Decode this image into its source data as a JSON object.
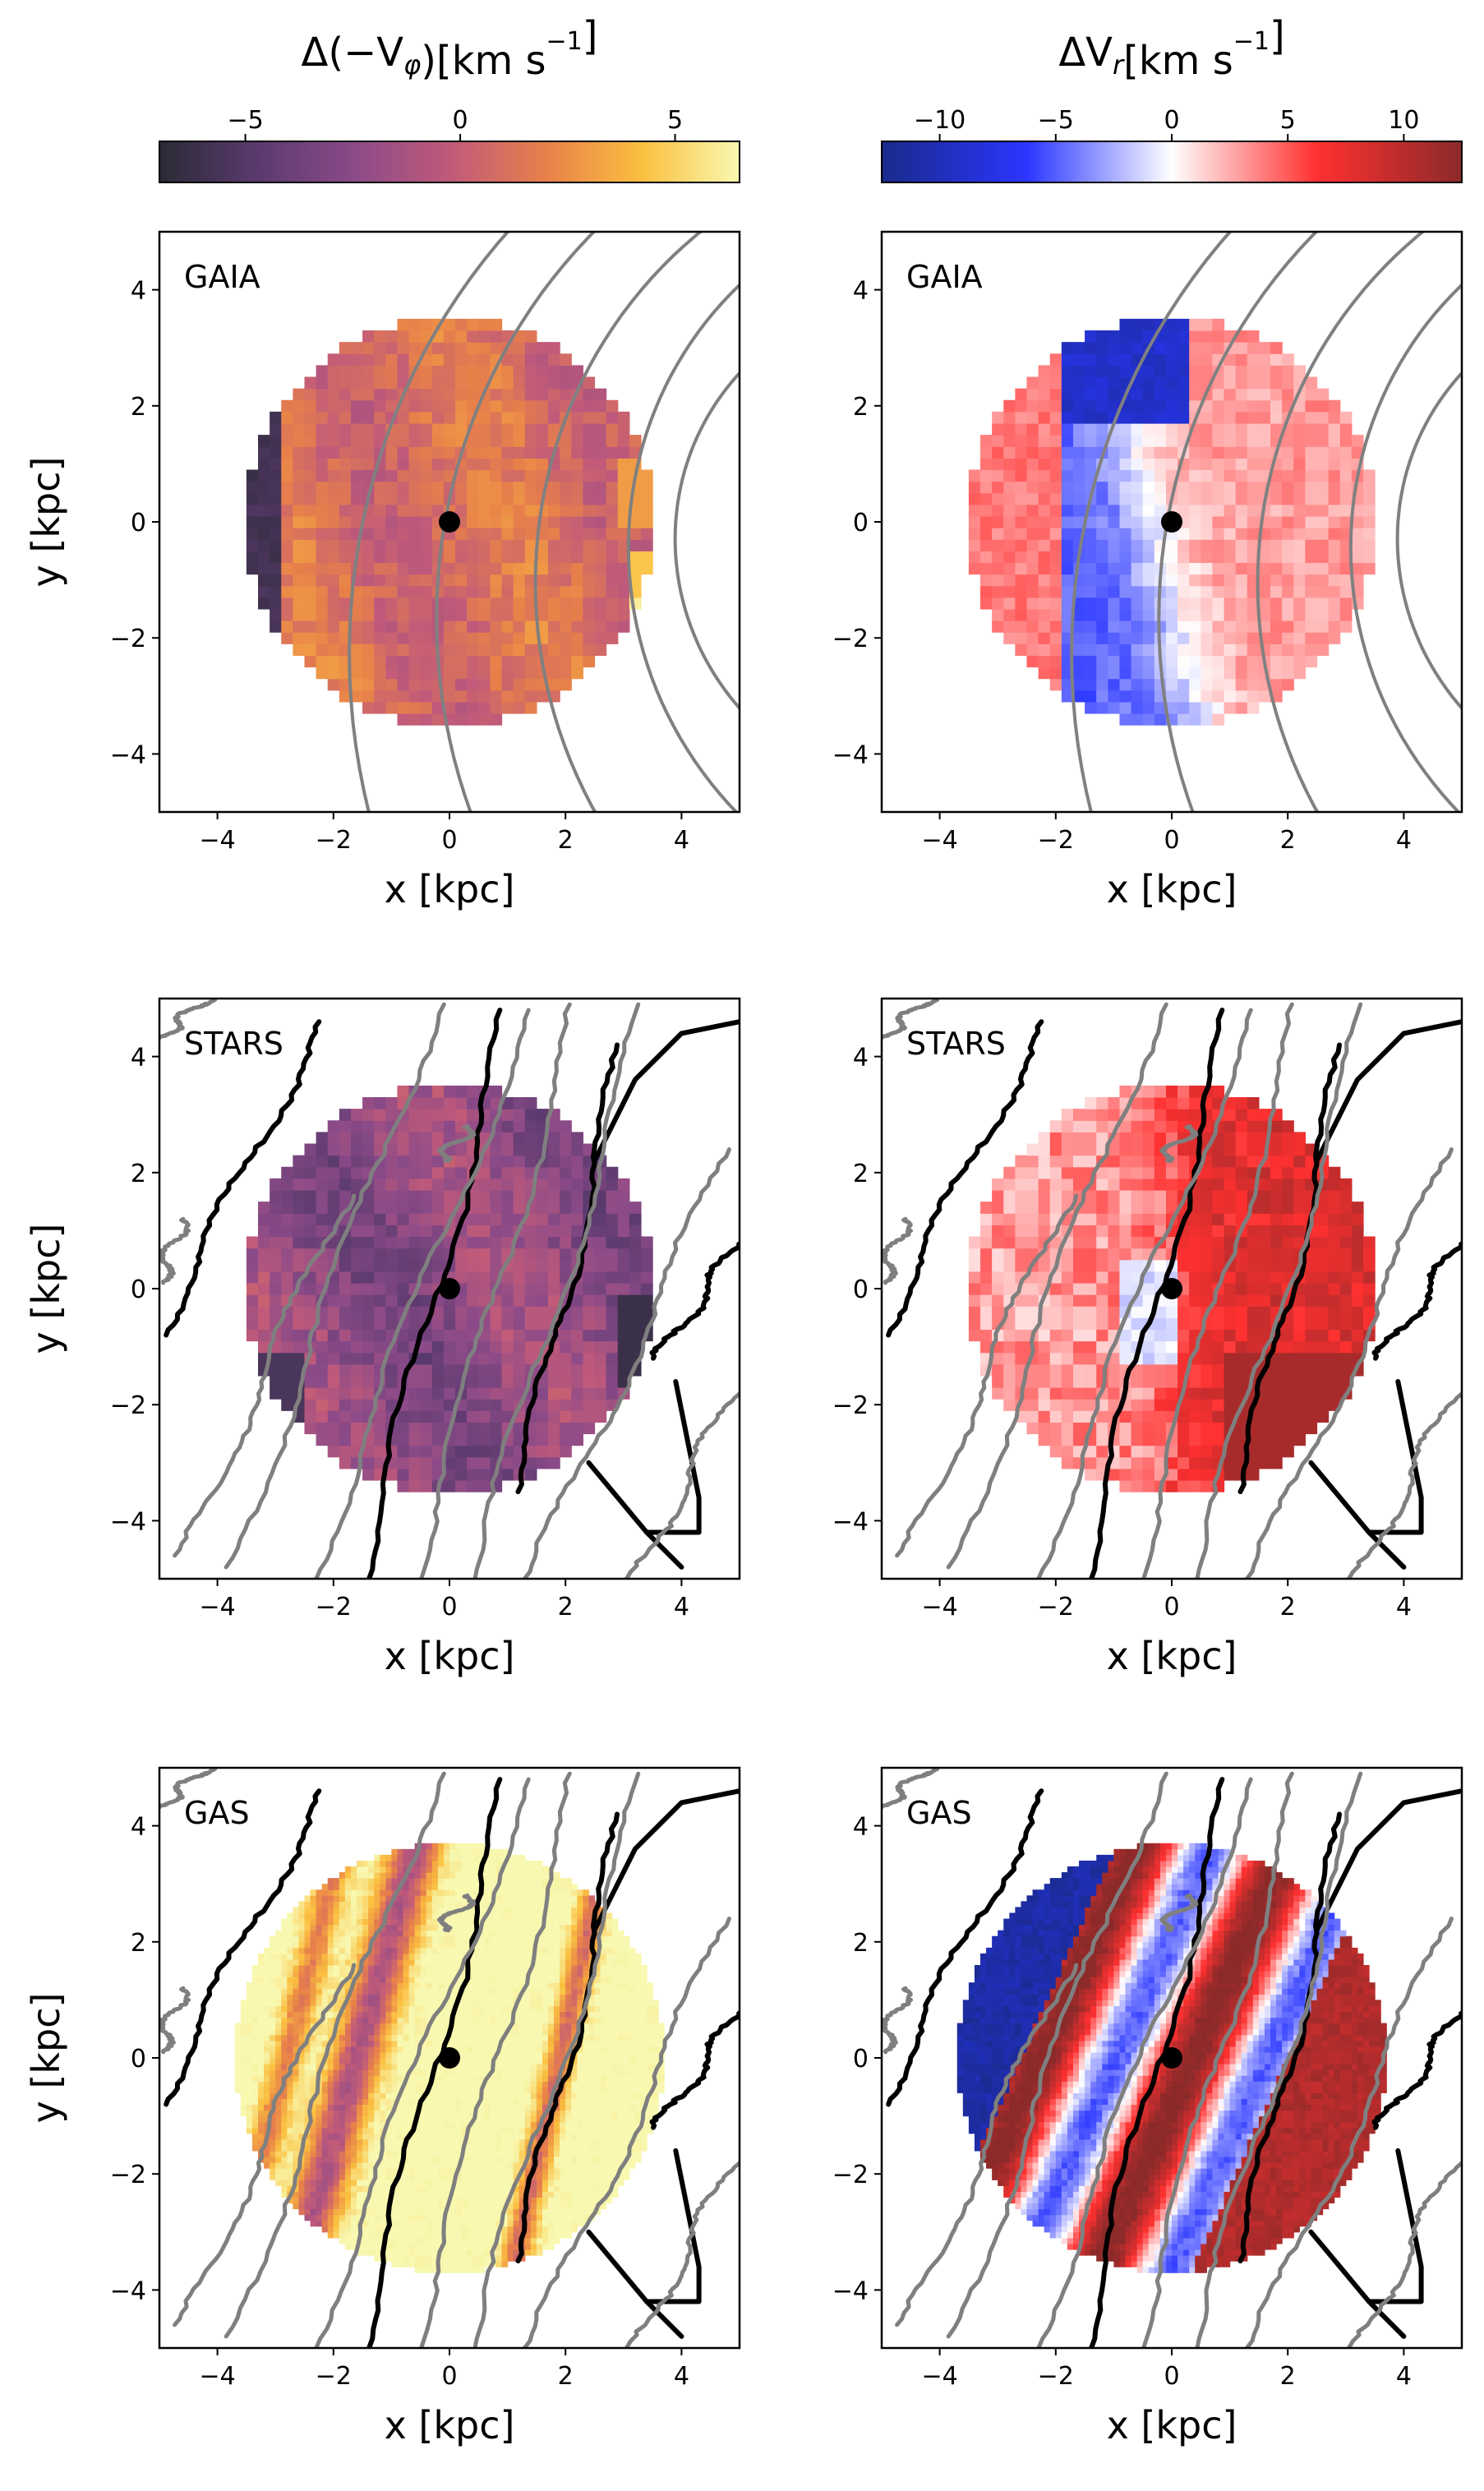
{
  "chart_data": {
    "type": "heatmap",
    "grid": {
      "rows": 3,
      "cols": 2
    },
    "colorbars": [
      {
        "label": "Δ(−V_φ)[km s⁻¹]",
        "label_main": "Δ(−V",
        "label_sub": "φ",
        "label_tail": ")[km s",
        "label_sup": "−1",
        "label_end": "]",
        "cmap": "inferno-like",
        "range": [
          -7,
          6.5
        ],
        "ticks": [
          -5,
          0,
          5
        ],
        "tick_labels": [
          "−5",
          "0",
          "5"
        ],
        "colors": [
          "#2a2a35",
          "#5a3a6e",
          "#8a4a88",
          "#c05a7a",
          "#e8804a",
          "#fbc040",
          "#f8f8b0"
        ]
      },
      {
        "label": "ΔV_r[km s⁻¹]",
        "label_main": "ΔV",
        "label_sub": "r",
        "label_tail": "[km s",
        "label_sup": "−1",
        "label_end": "]",
        "cmap": "bwr-like",
        "range": [
          -12.5,
          12.5
        ],
        "ticks": [
          -10,
          -5,
          0,
          5,
          10
        ],
        "tick_labels": [
          "−10",
          "−5",
          "0",
          "5",
          "10"
        ],
        "colors": [
          "#1a2a8a",
          "#2a36ff",
          "#ffffff",
          "#ff3030",
          "#8c2a2a"
        ]
      }
    ],
    "xlabel": "x [kpc]",
    "ylabel": "y [kpc]",
    "xlim": [
      -5,
      5
    ],
    "ylim": [
      -5,
      5
    ],
    "xticks": [
      -4,
      -2,
      0,
      2,
      4
    ],
    "yticks": [
      -4,
      -2,
      0,
      2,
      4
    ],
    "tick_labels": [
      "−4",
      "−2",
      "0",
      "2",
      "4"
    ],
    "sun_position": [
      0,
      0
    ],
    "panels": [
      {
        "label": "GAIA",
        "quantity": "dVphi",
        "colorbar": 0,
        "radius_kpc": 3.5,
        "overlay": "spiral-model"
      },
      {
        "label": "GAIA",
        "quantity": "dVr",
        "colorbar": 1,
        "radius_kpc": 3.5,
        "overlay": "spiral-model"
      },
      {
        "label": "STARS",
        "quantity": "dVphi",
        "colorbar": 0,
        "radius_kpc": 3.5,
        "overlay": "simulation-arms"
      },
      {
        "label": "STARS",
        "quantity": "dVr",
        "colorbar": 1,
        "radius_kpc": 3.5,
        "overlay": "simulation-arms"
      },
      {
        "label": "GAS",
        "quantity": "dVphi",
        "colorbar": 0,
        "radius_kpc": 3.7,
        "overlay": "simulation-arms"
      },
      {
        "label": "GAS",
        "quantity": "dVr",
        "colorbar": 1,
        "radius_kpc": 3.7,
        "overlay": "simulation-arms"
      }
    ]
  }
}
